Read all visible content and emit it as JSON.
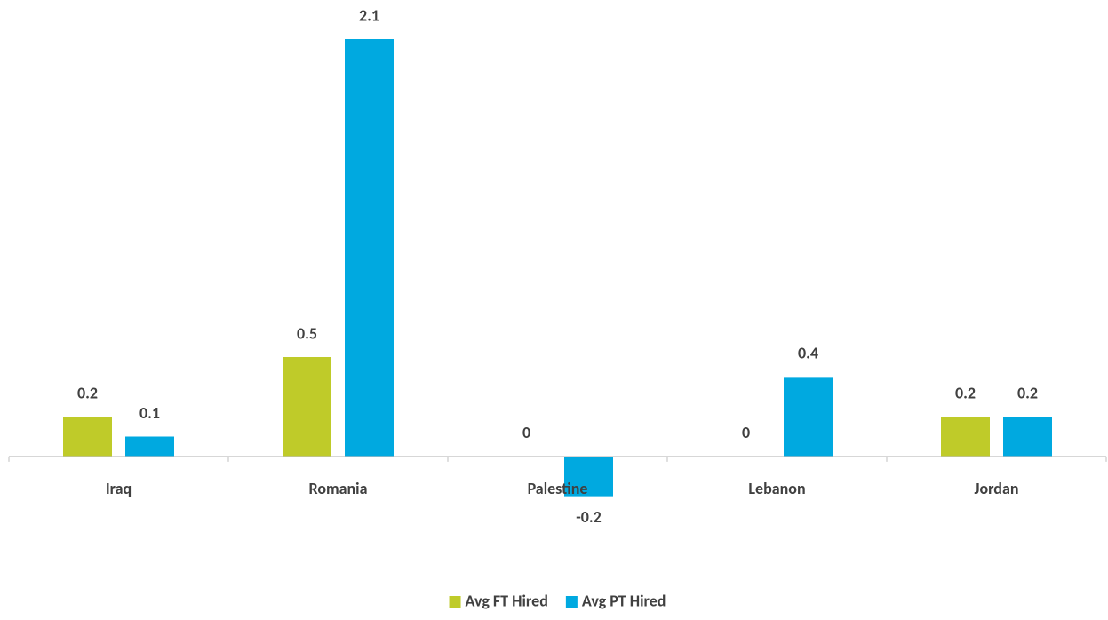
{
  "chart_data": {
    "type": "bar",
    "categories": [
      "Iraq",
      "Romania",
      "Palestine",
      "Lebanon",
      "Jordan"
    ],
    "series": [
      {
        "name": "Avg FT Hired",
        "color": "#bfcb29",
        "values": [
          0.2,
          0.5,
          0,
          0,
          0.2
        ]
      },
      {
        "name": "Avg PT Hired",
        "color": "#00a9e0",
        "values": [
          0.1,
          2.1,
          -0.2,
          0.4,
          0.2
        ]
      }
    ],
    "ylim": [
      -0.3,
      2.1
    ],
    "legend": "bottom"
  }
}
